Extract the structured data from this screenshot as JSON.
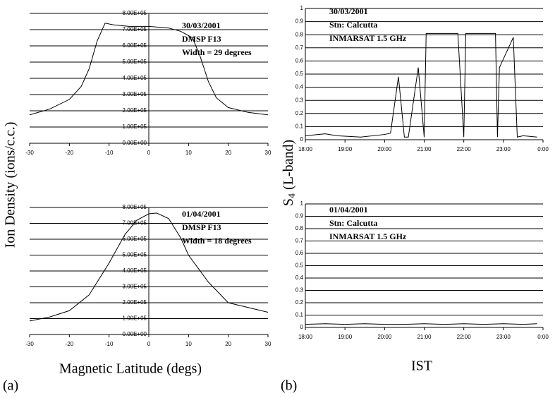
{
  "chart_data": [
    {
      "type": "line",
      "annotations": [
        "30/03/2001",
        "DMSP F13",
        "Width = 29 degrees"
      ],
      "x": [
        -30,
        -25,
        -20,
        -17,
        -15,
        -13,
        -11,
        -9,
        -5,
        0,
        5,
        8,
        11,
        13,
        15,
        17,
        20,
        25,
        30
      ],
      "series": [
        {
          "color": "#000000",
          "values": [
            175000,
            210000,
            270000,
            350000,
            460000,
            630000,
            740000,
            730000,
            720000,
            720000,
            710000,
            690000,
            650000,
            530000,
            380000,
            280000,
            220000,
            190000,
            175000
          ]
        }
      ],
      "xlim": [
        -30,
        30
      ],
      "xticks": [
        -30,
        -20,
        -10,
        0,
        10,
        20,
        30
      ],
      "ylim": [
        0,
        800000
      ],
      "yticks": [
        {
          "value": 0,
          "label": "0.00E+00"
        },
        {
          "value": 100000,
          "label": "1.00E+05"
        },
        {
          "value": 200000,
          "label": "2.00E+05"
        },
        {
          "value": 300000,
          "label": "3.00E+05"
        },
        {
          "value": 400000,
          "label": "4.00E+05"
        },
        {
          "value": 500000,
          "label": "5.00E+05"
        },
        {
          "value": 600000,
          "label": "6.00E+05"
        },
        {
          "value": 700000,
          "label": "7.00E+05"
        },
        {
          "value": 800000,
          "label": "8.00E+05"
        }
      ],
      "grid": true
    },
    {
      "type": "line",
      "annotations": [
        "01/04/2001",
        "DMSP F13",
        "Width = 18 degrees"
      ],
      "x": [
        -30,
        -25,
        -20,
        -15,
        -10,
        -6,
        -3,
        0,
        2,
        5,
        8,
        10,
        15,
        20,
        25,
        30
      ],
      "series": [
        {
          "color": "#000000",
          "values": [
            85000,
            110000,
            150000,
            250000,
            450000,
            630000,
            720000,
            760000,
            765000,
            730000,
            610000,
            500000,
            330000,
            200000,
            170000,
            140000
          ]
        }
      ],
      "xlim": [
        -30,
        30
      ],
      "xticks": [
        -30,
        -20,
        -10,
        0,
        10,
        20,
        30
      ],
      "ylim": [
        0,
        800000
      ],
      "yticks": [
        {
          "value": 0,
          "label": "0.00E+00"
        },
        {
          "value": 100000,
          "label": "1.00E+05"
        },
        {
          "value": 200000,
          "label": "2.00E+05"
        },
        {
          "value": 300000,
          "label": "3.00E+05"
        },
        {
          "value": 400000,
          "label": "4.00E+05"
        },
        {
          "value": 500000,
          "label": "5.00E+05"
        },
        {
          "value": 600000,
          "label": "6.00E+05"
        },
        {
          "value": 700000,
          "label": "7.00E+05"
        },
        {
          "value": 800000,
          "label": "8.00E+05"
        }
      ],
      "grid": true
    },
    {
      "type": "line",
      "annotations": [
        "30/03/2001",
        "Stn: Calcutta",
        "INMARSAT 1.5 GHz"
      ],
      "x": [
        18.0,
        18.5,
        18.8,
        19.4,
        20.0,
        20.15,
        20.35,
        20.5,
        20.6,
        20.85,
        21.0,
        21.05,
        21.85,
        22.0,
        22.05,
        22.8,
        22.85,
        22.9,
        23.25,
        23.35,
        23.5,
        23.85
      ],
      "series": [
        {
          "color": "#000000",
          "values": [
            0.03,
            0.045,
            0.03,
            0.02,
            0.04,
            0.05,
            0.48,
            0.02,
            0.02,
            0.55,
            0.02,
            0.81,
            0.81,
            0.02,
            0.81,
            0.81,
            0.02,
            0.55,
            0.78,
            0.02,
            0.03,
            0.02
          ]
        }
      ],
      "xlim": [
        18,
        24
      ],
      "xticks": [
        {
          "value": 18,
          "label": "18:00"
        },
        {
          "value": 19,
          "label": "19:00"
        },
        {
          "value": 20,
          "label": "20:00"
        },
        {
          "value": 21,
          "label": "21:00"
        },
        {
          "value": 22,
          "label": "22:00"
        },
        {
          "value": 23,
          "label": "23:00"
        },
        {
          "value": 24,
          "label": "0:00"
        }
      ],
      "ylim": [
        0,
        1
      ],
      "yticks": [
        0,
        0.1,
        0.2,
        0.3,
        0.4,
        0.5,
        0.6,
        0.7,
        0.8,
        0.9,
        1
      ],
      "grid": true
    },
    {
      "type": "line",
      "annotations": [
        "01/04/2001",
        "Stn: Calcutta",
        "INMARSAT 1.5 GHz"
      ],
      "x": [
        18.0,
        18.5,
        19.0,
        19.5,
        20.0,
        20.5,
        21.0,
        21.5,
        22.0,
        22.5,
        23.0,
        23.5,
        23.85
      ],
      "series": [
        {
          "color": "#000000",
          "values": [
            0.025,
            0.03,
            0.025,
            0.03,
            0.025,
            0.025,
            0.03,
            0.025,
            0.03,
            0.025,
            0.03,
            0.025,
            0.03
          ]
        }
      ],
      "xlim": [
        18,
        24
      ],
      "xticks": [
        {
          "value": 18,
          "label": "18:00"
        },
        {
          "value": 19,
          "label": "19:00"
        },
        {
          "value": 20,
          "label": "20:00"
        },
        {
          "value": 21,
          "label": "21:00"
        },
        {
          "value": 22,
          "label": "22:00"
        },
        {
          "value": 23,
          "label": "23:00"
        },
        {
          "value": 24,
          "label": "0:00"
        }
      ],
      "ylim": [
        0,
        1
      ],
      "yticks": [
        0,
        0.1,
        0.2,
        0.3,
        0.4,
        0.5,
        0.6,
        0.7,
        0.8,
        0.9,
        1
      ],
      "grid": true
    }
  ],
  "figure": {
    "y_label_left": "Ion Density (ions/c.c.)",
    "x_label_left": "Magnetic Latitude (degs)",
    "panel_a": "(a)",
    "y_label_right": [
      "S",
      "4",
      " (L-band)"
    ],
    "x_label_right": "IST",
    "panel_b": "(b)"
  }
}
